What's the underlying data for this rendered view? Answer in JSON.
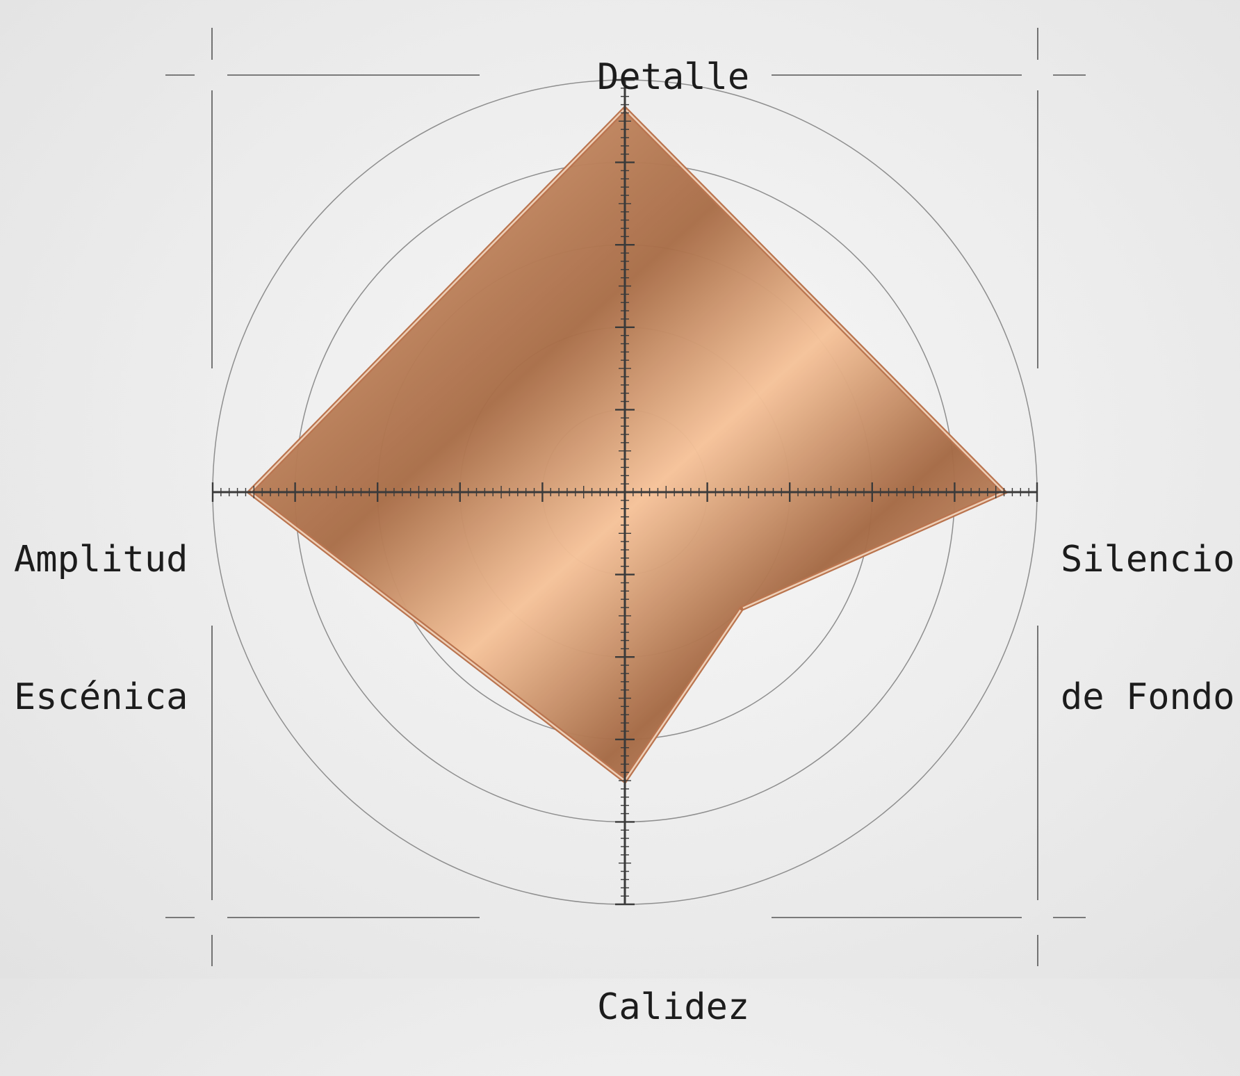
{
  "chart_data": {
    "type": "radar",
    "axes": [
      {
        "key": "detalle",
        "lines": [
          "Detalle"
        ],
        "value": 0.93
      },
      {
        "key": "silencio",
        "lines": [
          "Silencio",
          "de Fondo"
        ],
        "value": 0.92
      },
      {
        "key": "calidez",
        "lines": [
          "Calidez"
        ],
        "value": 0.7
      },
      {
        "key": "amplitud",
        "lines": [
          "Amplitud",
          "Escénica"
        ],
        "value": 0.91
      }
    ],
    "extra_vertices": [
      {
        "between": [
          "silencio",
          "calidez"
        ],
        "value": 0.4
      }
    ],
    "range": [
      0,
      1
    ],
    "rings": [
      0.2,
      0.4,
      0.6,
      0.8,
      1.0
    ],
    "grid": true,
    "colors": {
      "fill_light": "#f6c39a",
      "fill_dark": "#a96e48",
      "stroke": "#b9714a",
      "highlight": "#f3d9c2",
      "axis": "#3a3a3a",
      "ring": "#8e8e8e"
    }
  }
}
